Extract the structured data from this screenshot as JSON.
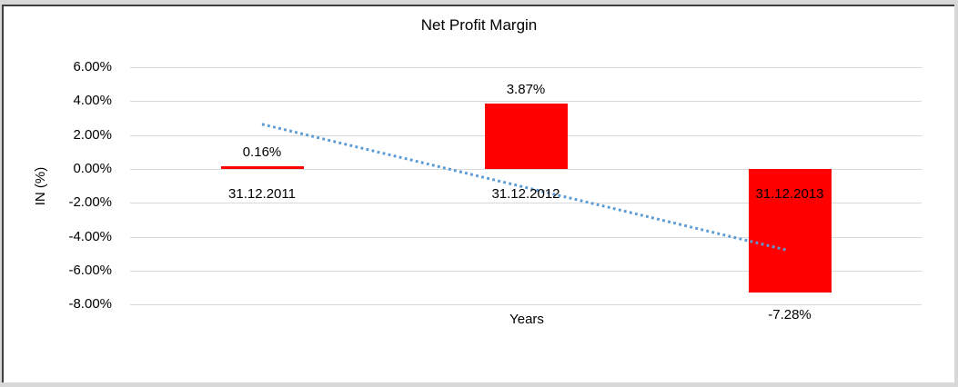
{
  "chart": {
    "title": "Net Profit Margin",
    "y_axis_title": "IN (%)",
    "x_axis_title": "Years",
    "bar_color": "#ff0000",
    "trendline_color": "#5b9bd5",
    "gridline_color": "#d9d9d9",
    "background_color": "#ffffff",
    "frame_color": "#3f3f3f"
  },
  "chart_data": {
    "type": "bar",
    "title": "Net Profit Margin",
    "xlabel": "Years",
    "ylabel": "IN (%)",
    "categories": [
      "31.12.2011",
      "31.12.2012",
      "31.12.2013"
    ],
    "values": [
      0.16,
      3.87,
      -7.28
    ],
    "data_labels": [
      "0.16%",
      "3.87%",
      "-7.28%"
    ],
    "ylim": [
      -8,
      6
    ],
    "y_ticks": [
      6,
      4,
      2,
      0,
      -2,
      -4,
      -6,
      -8
    ],
    "y_tick_labels": [
      "6.00%",
      "4.00%",
      "2.00%",
      "0.00%",
      "-2.00%",
      "-4.00%",
      "-6.00%",
      "-8.00%"
    ],
    "grid": true,
    "legend": false,
    "bar_color": "#ff0000",
    "trendline": {
      "type": "linear",
      "style": "dotted",
      "color": "#5b9bd5",
      "start_value": 2.64,
      "end_value": -4.8
    }
  }
}
